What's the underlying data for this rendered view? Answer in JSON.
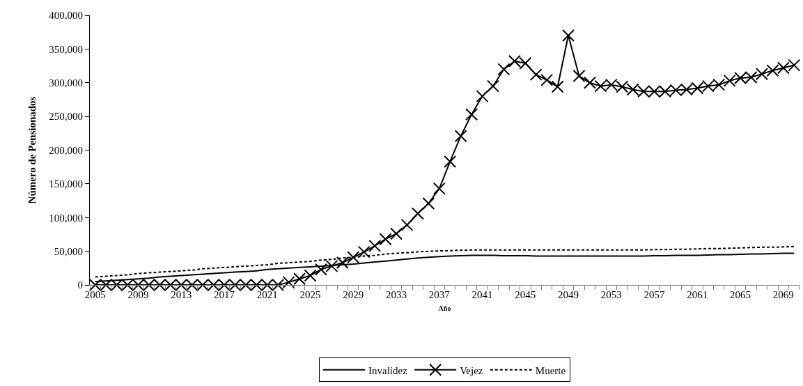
{
  "chart_data": {
    "type": "line",
    "xlabel": "Año",
    "ylabel": "Número de Pensionados",
    "categories": [
      "2005",
      null,
      null,
      null,
      "2009",
      null,
      null,
      null,
      "2013",
      null,
      null,
      null,
      "2017",
      null,
      null,
      null,
      "2021",
      null,
      null,
      null,
      "2025",
      null,
      null,
      null,
      "2029",
      null,
      null,
      null,
      "2033",
      null,
      null,
      null,
      "2037",
      null,
      null,
      null,
      "2041",
      null,
      null,
      null,
      "2045",
      null,
      null,
      null,
      "2049",
      null,
      null,
      null,
      "2053",
      null,
      null,
      null,
      "2057",
      null,
      null,
      null,
      "2061",
      null,
      null,
      null,
      "2065",
      null,
      null,
      null,
      "2069",
      null
    ],
    "series": [
      {
        "name": "Invalidez",
        "color": "#000000",
        "line_style": "solid",
        "marker": "none",
        "values": [
          5000,
          6000,
          7000,
          8000,
          9000,
          10000,
          12000,
          13000,
          14000,
          15000,
          16000,
          17000,
          18000,
          19000,
          20000,
          21000,
          23000,
          24000,
          25000,
          26000,
          27000,
          28000,
          29000,
          30000,
          31000,
          32500,
          34000,
          35500,
          37000,
          38500,
          40000,
          41000,
          42000,
          43000,
          43500,
          44000,
          44000,
          44000,
          43500,
          43500,
          43500,
          43000,
          43000,
          43000,
          43000,
          43000,
          43000,
          43000,
          43000,
          43000,
          43000,
          43000,
          43500,
          43500,
          44000,
          44000,
          44000,
          44500,
          45000,
          45000,
          45500,
          46000,
          46000,
          46500,
          47000,
          47000
        ]
      },
      {
        "name": "Vejez",
        "color": "#000000",
        "line_style": "solid",
        "marker": "cross",
        "values": [
          0,
          0,
          0,
          0,
          0,
          0,
          0,
          0,
          0,
          0,
          0,
          0,
          0,
          0,
          0,
          0,
          0,
          0,
          4000,
          9000,
          14000,
          23000,
          28000,
          33000,
          41000,
          49000,
          58000,
          68000,
          76000,
          89000,
          106000,
          121000,
          143000,
          183000,
          221000,
          253000,
          280000,
          295000,
          320000,
          332000,
          329000,
          312000,
          304000,
          294000,
          370000,
          310000,
          300000,
          295000,
          297000,
          294000,
          290000,
          287000,
          287000,
          287000,
          289000,
          290000,
          292000,
          295000,
          297000,
          303000,
          307000,
          308000,
          313000,
          318000,
          322000,
          326000
        ]
      },
      {
        "name": "Muerte",
        "color": "#000000",
        "line_style": "dashed",
        "marker": "none",
        "values": [
          12000,
          13000,
          14000,
          15000,
          17000,
          18000,
          19000,
          20000,
          21000,
          22000,
          24000,
          25000,
          26000,
          27000,
          28000,
          29000,
          30000,
          32000,
          33000,
          34000,
          35000,
          37000,
          38000,
          40000,
          41000,
          43000,
          44000,
          46000,
          47000,
          48000,
          49000,
          50000,
          50500,
          51000,
          51500,
          52000,
          52000,
          52000,
          52000,
          52000,
          52000,
          52000,
          52000,
          52000,
          52000,
          52000,
          52000,
          52000,
          52000,
          52000,
          52000,
          52000,
          52500,
          52500,
          53000,
          53000,
          53500,
          54000,
          54000,
          54500,
          55000,
          55500,
          56000,
          56000,
          56500,
          57000
        ]
      }
    ],
    "ylim": [
      0,
      400000
    ],
    "yticks": [
      0,
      {
        "value": 50000,
        "label": "50,000"
      },
      {
        "value": 100000,
        "label": "100,000"
      },
      {
        "value": 150000,
        "label": "150,000"
      },
      {
        "value": 200000,
        "label": "200,000"
      },
      {
        "value": 250000,
        "label": "250,000"
      },
      {
        "value": 300000,
        "label": "300,000"
      },
      {
        "value": 350000,
        "label": "350,000"
      },
      {
        "value": 400000,
        "label": "400,000"
      }
    ],
    "legend": "bottom"
  }
}
